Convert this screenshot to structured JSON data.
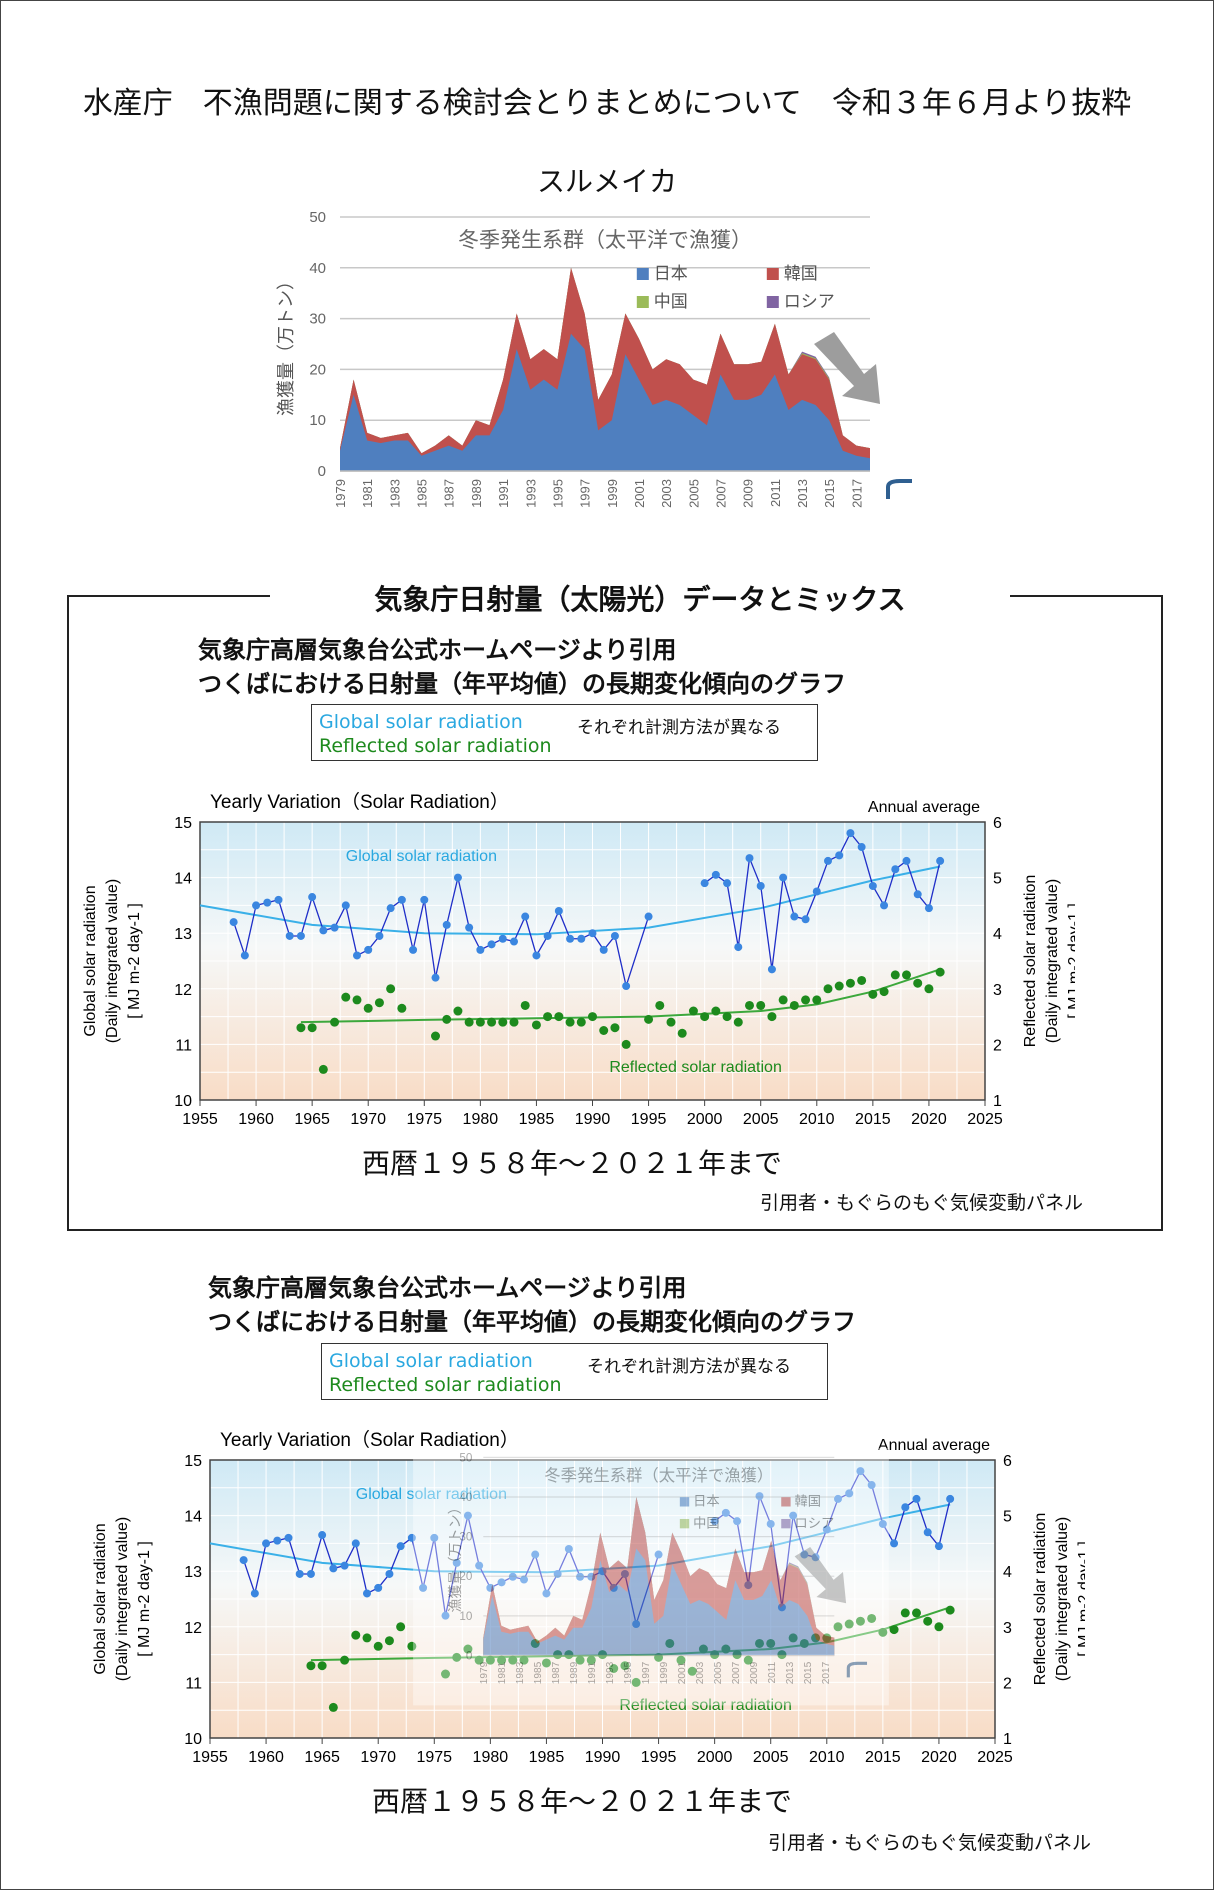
{
  "header": {
    "title": "水産庁　不漁問題に関する検討会とりまとめについて　令和３年６月より抜粋",
    "chart_label": "スルメイカ"
  },
  "section": {
    "title": "気象庁日射量（太陽光）データとミックス",
    "subtitle_line1": "気象庁高層気象台公式ホームページより引用",
    "subtitle_line2": "つくばにおける日射量（年平均値）の長期変化傾向のグラフ",
    "legend_global": "Global solar radiation",
    "legend_reflected": "Reflected solar radiation",
    "legend_note": "それぞれ計測方法が異なる",
    "caption": "西暦１９５８年～２０２１年まで",
    "credit": "引用者・もぐらのもぐ気候変動パネル"
  },
  "chart_data": [
    {
      "type": "area",
      "title": "冬季発生系群（太平洋で漁獲）",
      "ylabel": "漁獲量（万トン）",
      "ylim": [
        0,
        50
      ],
      "yticks": [
        0,
        10,
        20,
        30,
        40,
        50
      ],
      "x": [
        1979,
        1980,
        1981,
        1982,
        1983,
        1984,
        1985,
        1986,
        1987,
        1988,
        1989,
        1990,
        1991,
        1992,
        1993,
        1994,
        1995,
        1996,
        1997,
        1998,
        1999,
        2000,
        2001,
        2002,
        2003,
        2004,
        2005,
        2006,
        2007,
        2008,
        2009,
        2010,
        2011,
        2012,
        2013,
        2014,
        2015,
        2016,
        2017,
        2018
      ],
      "xtick_labels": [
        "1979",
        "1981",
        "1983",
        "1985",
        "1987",
        "1989",
        "1991",
        "1993",
        "1995",
        "1997",
        "1999",
        "2001",
        "2003",
        "2005",
        "2007",
        "2009",
        "2011",
        "2013",
        "2015",
        "2017"
      ],
      "stacked": true,
      "grid": true,
      "legend_position": "top-right",
      "series": [
        {
          "name": "日本",
          "color": "#4f7fbf",
          "values": [
            4,
            15,
            6,
            5.5,
            6,
            6,
            3,
            4,
            5,
            4,
            7,
            7,
            12,
            24,
            16,
            18,
            16,
            27,
            24,
            8,
            10,
            23,
            18,
            13,
            14,
            13,
            11,
            9,
            19,
            14,
            14,
            15,
            19,
            12,
            14,
            13,
            10,
            4,
            3,
            2.5
          ]
        },
        {
          "name": "韓国",
          "color": "#c0504d",
          "values": [
            0.5,
            3,
            1.5,
            1,
            1,
            1.5,
            0.5,
            1,
            2,
            1,
            3,
            2,
            6,
            7,
            6,
            6,
            6,
            13,
            7,
            6,
            9,
            8,
            8,
            7,
            8,
            8,
            7,
            8,
            8,
            7,
            7,
            6.5,
            10,
            7,
            9,
            9,
            8,
            3,
            2,
            2
          ]
        },
        {
          "name": "中国",
          "color": "#9bbb59",
          "values": [
            0,
            0,
            0,
            0,
            0,
            0,
            0,
            0,
            0,
            0,
            0,
            0,
            0,
            0,
            0,
            0,
            0,
            0,
            0,
            0,
            0,
            0,
            0,
            0,
            0,
            0,
            0,
            0,
            0,
            0,
            0,
            0,
            0,
            0,
            0.2,
            0.2,
            0.2,
            0,
            0,
            0
          ]
        },
        {
          "name": "ロシア",
          "color": "#8064a2",
          "values": [
            0,
            0,
            0,
            0,
            0,
            0,
            0,
            0,
            0,
            0,
            0,
            0,
            0,
            0,
            0,
            0,
            0,
            0,
            0,
            0,
            0,
            0,
            0,
            0,
            0,
            0,
            0,
            0,
            0,
            0,
            0,
            0,
            0,
            0,
            0.3,
            0.3,
            0.2,
            0,
            0,
            0
          ]
        }
      ]
    },
    {
      "type": "scatter",
      "title": "Yearly Variation（Solar Radiation）",
      "annotation": "Annual average",
      "xlabel": "",
      "ylabel": "Global solar radiation (Daily integrated value) [ MJ m-2 day-1 ]",
      "y2label": "Reflected solar radiation (Daily integrated value) [ MJ m-2 day-1 ]",
      "xlim": [
        1955,
        2025
      ],
      "xticks": [
        1955,
        1960,
        1965,
        1970,
        1975,
        1980,
        1985,
        1990,
        1995,
        2000,
        2005,
        2010,
        2015,
        2020,
        2025
      ],
      "ylim": [
        10,
        15
      ],
      "yticks": [
        10,
        11,
        12,
        13,
        14,
        15
      ],
      "y2lim": [
        1,
        6
      ],
      "y2ticks": [
        1,
        2,
        3,
        4,
        5,
        6
      ],
      "series": [
        {
          "name": "Global solar radiation",
          "color": "#1f2ec8",
          "marker_color": "#3a86e0",
          "x": [
            1958,
            1959,
            1960,
            1961,
            1962,
            1963,
            1964,
            1965,
            1966,
            1967,
            1968,
            1969,
            1970,
            1971,
            1972,
            1973,
            1974,
            1975,
            1976,
            1977,
            1978,
            1979,
            1980,
            1981,
            1982,
            1983,
            1984,
            1985,
            1986,
            1987,
            1988,
            1989,
            1990,
            1991,
            1992,
            1993,
            1995
          ],
          "values": [
            13.2,
            12.6,
            13.5,
            13.55,
            13.6,
            12.95,
            12.95,
            13.65,
            13.05,
            13.1,
            13.5,
            12.6,
            12.7,
            12.95,
            13.45,
            13.6,
            12.7,
            13.6,
            12.2,
            13.15,
            14.0,
            13.1,
            12.7,
            12.8,
            12.9,
            12.85,
            13.3,
            12.6,
            12.95,
            13.4,
            12.9,
            12.9,
            13.0,
            12.7,
            12.95,
            12.05,
            13.3
          ]
        },
        {
          "name": "Global solar radiation",
          "color": "#1f2ec8",
          "marker_color": "#3a86e0",
          "x": [
            2000,
            2001,
            2002,
            2003,
            2004,
            2005,
            2006,
            2007,
            2008,
            2009,
            2010,
            2011,
            2012,
            2013,
            2014,
            2015,
            2016,
            2017,
            2018,
            2019,
            2020,
            2021
          ],
          "values": [
            13.9,
            14.05,
            13.9,
            12.75,
            14.35,
            13.85,
            12.35,
            14.0,
            13.3,
            13.25,
            13.75,
            14.3,
            14.4,
            14.8,
            14.55,
            13.85,
            13.5,
            14.15,
            14.3,
            13.7,
            13.45,
            14.3
          ]
        },
        {
          "name": "Reflected solar radiation",
          "color": "#1d8a1d",
          "axis": "right",
          "x": [
            1964,
            1965,
            1966,
            1967,
            1968,
            1969,
            1970,
            1971,
            1972,
            1973,
            1976,
            1977,
            1978,
            1979,
            1980,
            1981,
            1982,
            1983,
            1984,
            1985,
            1986,
            1987,
            1988,
            1989,
            1990,
            1991,
            1992,
            1993,
            1995,
            1996,
            1997,
            1998,
            1999,
            2000,
            2001,
            2002,
            2003,
            2004,
            2005,
            2006,
            2007,
            2008,
            2009,
            2010,
            2011,
            2012,
            2013,
            2014,
            2015,
            2016,
            2017,
            2018,
            2019,
            2020,
            2021
          ],
          "values": [
            2.3,
            2.3,
            1.55,
            2.4,
            2.85,
            2.8,
            2.65,
            2.75,
            3.0,
            2.65,
            2.15,
            2.45,
            2.6,
            2.4,
            2.4,
            2.4,
            2.4,
            2.4,
            2.7,
            2.35,
            2.5,
            2.5,
            2.4,
            2.4,
            2.5,
            2.25,
            2.3,
            2.0,
            2.45,
            2.7,
            2.4,
            2.2,
            2.6,
            2.5,
            2.6,
            2.5,
            2.4,
            2.7,
            2.7,
            2.5,
            2.8,
            2.7,
            2.8,
            2.8,
            3.0,
            3.05,
            3.1,
            3.15,
            2.9,
            2.95,
            3.25,
            3.25,
            3.1,
            3.0,
            3.3
          ]
        }
      ],
      "trend_global": {
        "name": "Global solar radiation",
        "color": "#3ab0e8",
        "x": [
          1955,
          1965,
          1975,
          1985,
          1995,
          2005,
          2015,
          2021
        ],
        "values": [
          13.5,
          13.15,
          13.0,
          12.98,
          13.1,
          13.45,
          13.95,
          14.2
        ]
      },
      "trend_reflected": {
        "name": "Reflected solar radiation",
        "color": "#3ca83c",
        "x": [
          1964,
          1975,
          1985,
          1995,
          2005,
          2010,
          2015,
          2021
        ],
        "values": [
          2.4,
          2.44,
          2.47,
          2.5,
          2.6,
          2.72,
          2.95,
          3.35
        ]
      }
    }
  ]
}
